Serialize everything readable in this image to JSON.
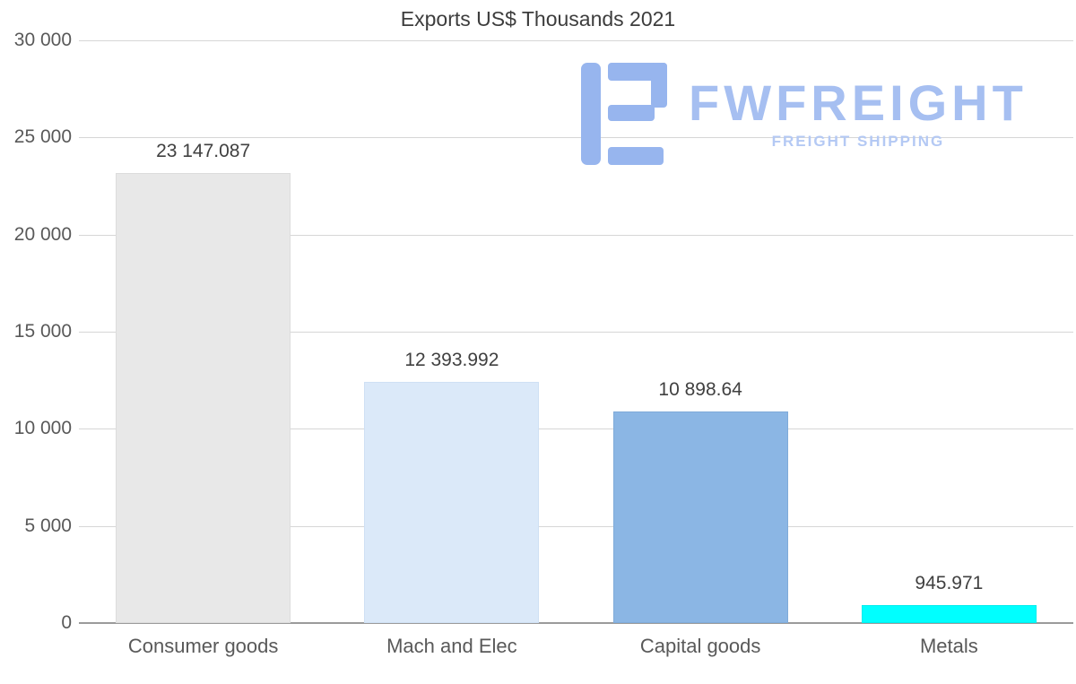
{
  "chart_data": {
    "type": "bar",
    "title": "Exports US$ Thousands 2021",
    "categories": [
      "Consumer goods",
      "Mach and Elec",
      "Capital goods",
      "Metals"
    ],
    "values": [
      23147.087,
      12393.992,
      10898.64,
      945.971
    ],
    "value_labels": [
      "23 147.087",
      "12 393.992",
      "10 898.64",
      "945.971"
    ],
    "bar_colors": [
      "#e8e8e8",
      "#dbe9f9",
      "#8bb6e4",
      "#00ffff"
    ],
    "bar_border_colors": [
      "#dcdcdc",
      "#cfe0f4",
      "#80abd9",
      "#00eded"
    ],
    "xlabel": "",
    "ylabel": "",
    "ylim": [
      0,
      30000
    ],
    "ytick_values": [
      0,
      5000,
      10000,
      15000,
      20000,
      25000,
      30000
    ],
    "ytick_labels": [
      "0",
      "5 000",
      "10 000",
      "15 000",
      "20 000",
      "25 000",
      "30 000"
    ],
    "grid": "horizontal",
    "legend": "none"
  },
  "watermark": {
    "brand": "FWFREIGHT",
    "tagline": "FREIGHT SHIPPING",
    "brand_color": "#a6bff1",
    "tagline_color": "#b4c9f4",
    "mark_color": "#97b5ee"
  },
  "colors": {
    "background": "#ffffff",
    "title": "#3d3d3d",
    "axis_label": "#595959",
    "gridline": "#d6d6d6",
    "axis_line": "#9b9b9b",
    "value_label": "#404040"
  }
}
